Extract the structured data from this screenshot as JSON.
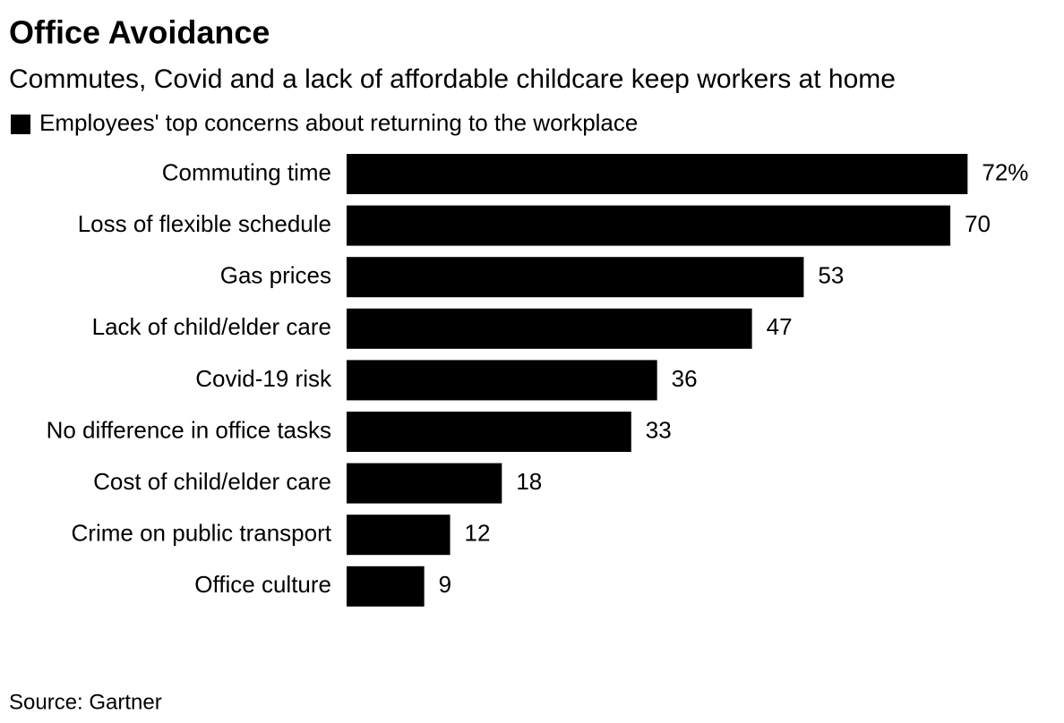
{
  "chart_data": {
    "type": "bar",
    "orientation": "horizontal",
    "title": "Office Avoidance",
    "subtitle": "Commutes, Covid and a lack of affordable childcare keep workers at home",
    "categories": [
      "Commuting time",
      "Loss of flexible schedule",
      "Gas prices",
      "Lack of child/elder care",
      "Covid-19 risk",
      "No difference in office tasks",
      "Cost of child/elder care",
      "Crime on public transport",
      "Office culture"
    ],
    "series": [
      {
        "name": "Employees' top concerns about returning to the workplace",
        "color": "#000000",
        "values": [
          72,
          70,
          53,
          47,
          36,
          33,
          18,
          12,
          9
        ],
        "value_labels": [
          "72%",
          "70",
          "53",
          "47",
          "36",
          "33",
          "18",
          "12",
          "9"
        ]
      }
    ],
    "source": "Source: Gartner"
  }
}
